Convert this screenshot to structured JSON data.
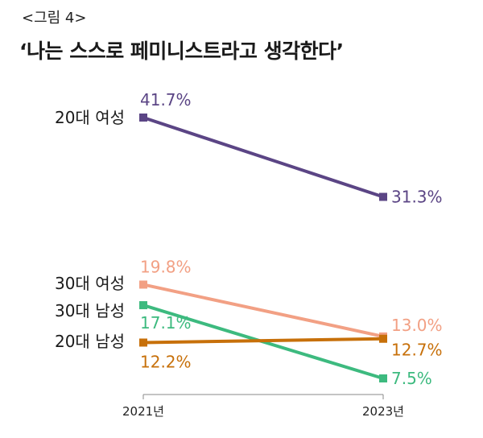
{
  "figure_label": "<그림 4>",
  "title": "‘나는 스스로 페미니스트라고 생각한다’",
  "chart_data": {
    "type": "line",
    "x": [
      "2021년",
      "2023년"
    ],
    "ylim": [
      0,
      45
    ],
    "grid": false,
    "series": [
      {
        "name": "20대 여성",
        "values": [
          41.7,
          31.3
        ],
        "labels": [
          "41.7%",
          "31.3%"
        ],
        "color": "#5b4585"
      },
      {
        "name": "30대 여성",
        "values": [
          19.8,
          13.0
        ],
        "labels": [
          "19.8%",
          "13.0%"
        ],
        "color": "#f2a084"
      },
      {
        "name": "30대 남성",
        "values": [
          17.1,
          7.5
        ],
        "labels": [
          "17.1%",
          "7.5%"
        ],
        "color": "#3dba7f"
      },
      {
        "name": "20대 남성",
        "values": [
          12.2,
          12.7
        ],
        "labels": [
          "12.2%",
          "12.7%"
        ],
        "color": "#c7700a"
      }
    ]
  }
}
